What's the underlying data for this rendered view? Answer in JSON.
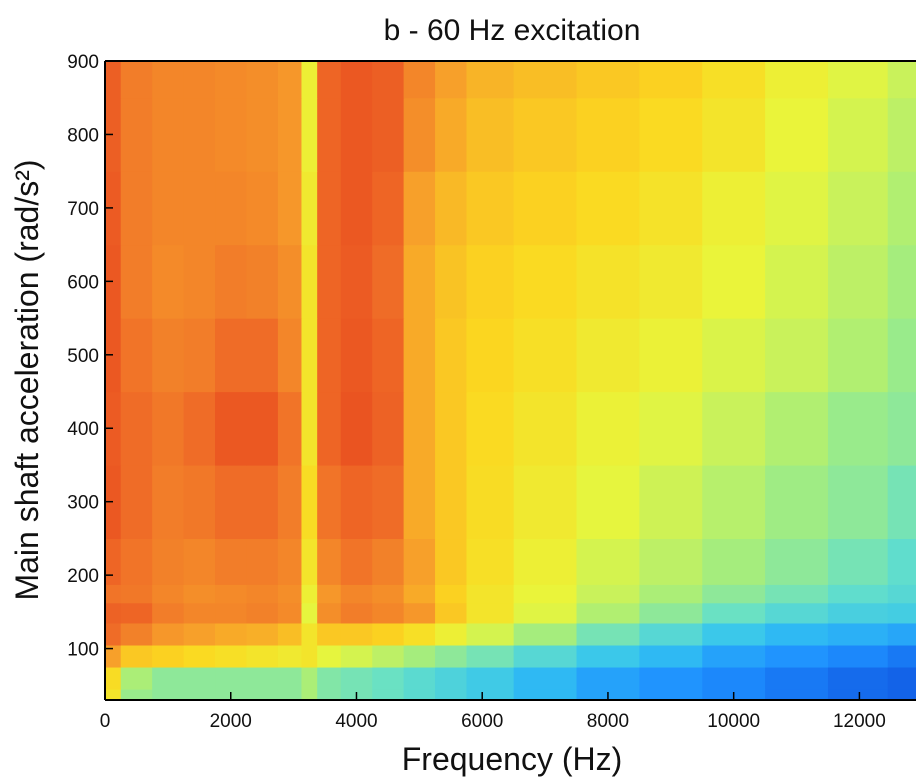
{
  "chart_data": {
    "type": "heatmap",
    "title": "b - 60 Hz excitation",
    "xlabel": "Frequency (Hz)",
    "ylabel": "Main shaft acceleration (rad/s²)",
    "xlim": [
      0,
      12900
    ],
    "ylim": [
      30,
      900
    ],
    "x_ticks": [
      {
        "value": 0,
        "label": "0"
      },
      {
        "value": 2000,
        "label": "2000"
      },
      {
        "value": 4000,
        "label": "4000"
      },
      {
        "value": 6000,
        "label": "6000"
      },
      {
        "value": 8000,
        "label": "8000"
      },
      {
        "value": 10000,
        "label": "10000"
      },
      {
        "value": 12000,
        "label": "12000"
      }
    ],
    "y_ticks": [
      {
        "value": 100,
        "label": "100"
      },
      {
        "value": 200,
        "label": "200"
      },
      {
        "value": 300,
        "label": "300"
      },
      {
        "value": 400,
        "label": "400"
      },
      {
        "value": 500,
        "label": "500"
      },
      {
        "value": 600,
        "label": "600"
      },
      {
        "value": 700,
        "label": "700"
      },
      {
        "value": 800,
        "label": "800"
      },
      {
        "value": 900,
        "label": "900"
      }
    ],
    "colormap": [
      "#0a3fd6",
      "#1e90ff",
      "#33c3f0",
      "#66e0c8",
      "#a8ee7a",
      "#e9f53b",
      "#fbd820",
      "#f7a12a",
      "#f07028",
      "#e84a1f"
    ],
    "color_scale": "relative intensity 0 to 1",
    "x": [
      0,
      500,
      1000,
      1500,
      2000,
      2500,
      3000,
      3250,
      3500,
      4000,
      4500,
      5000,
      5500,
      6000,
      7000,
      8000,
      9000,
      10000,
      11000,
      12000,
      12900
    ],
    "y": [
      30,
      60,
      90,
      120,
      150,
      175,
      200,
      300,
      400,
      500,
      600,
      700,
      800,
      900
    ],
    "values": [
      [
        0.62,
        0.42,
        0.4,
        0.4,
        0.4,
        0.4,
        0.4,
        0.45,
        0.38,
        0.36,
        0.34,
        0.31,
        0.28,
        0.25,
        0.2,
        0.15,
        0.12,
        0.1,
        0.08,
        0.06,
        0.05
      ],
      [
        0.65,
        0.45,
        0.4,
        0.4,
        0.4,
        0.4,
        0.4,
        0.45,
        0.38,
        0.36,
        0.34,
        0.31,
        0.28,
        0.25,
        0.2,
        0.15,
        0.12,
        0.1,
        0.08,
        0.06,
        0.05
      ],
      [
        0.78,
        0.7,
        0.68,
        0.66,
        0.64,
        0.62,
        0.6,
        0.62,
        0.55,
        0.52,
        0.48,
        0.44,
        0.4,
        0.36,
        0.3,
        0.24,
        0.2,
        0.15,
        0.12,
        0.1,
        0.08
      ],
      [
        0.9,
        0.85,
        0.8,
        0.78,
        0.76,
        0.75,
        0.72,
        0.62,
        0.7,
        0.7,
        0.68,
        0.64,
        0.58,
        0.52,
        0.44,
        0.36,
        0.3,
        0.24,
        0.2,
        0.18,
        0.16
      ],
      [
        0.93,
        0.92,
        0.86,
        0.84,
        0.84,
        0.85,
        0.83,
        0.55,
        0.82,
        0.86,
        0.84,
        0.8,
        0.7,
        0.62,
        0.54,
        0.46,
        0.4,
        0.34,
        0.3,
        0.27,
        0.26
      ],
      [
        0.88,
        0.87,
        0.84,
        0.82,
        0.83,
        0.84,
        0.82,
        0.58,
        0.8,
        0.84,
        0.82,
        0.76,
        0.68,
        0.62,
        0.56,
        0.5,
        0.45,
        0.4,
        0.36,
        0.32,
        0.3
      ],
      [
        0.92,
        0.88,
        0.85,
        0.84,
        0.86,
        0.86,
        0.84,
        0.62,
        0.84,
        0.88,
        0.85,
        0.78,
        0.7,
        0.64,
        0.58,
        0.52,
        0.48,
        0.44,
        0.4,
        0.36,
        0.32
      ],
      [
        0.96,
        0.9,
        0.86,
        0.87,
        0.9,
        0.9,
        0.86,
        0.65,
        0.88,
        0.92,
        0.9,
        0.76,
        0.7,
        0.65,
        0.6,
        0.55,
        0.51,
        0.47,
        0.43,
        0.4,
        0.36
      ],
      [
        0.95,
        0.9,
        0.87,
        0.9,
        0.96,
        0.96,
        0.88,
        0.62,
        0.92,
        0.97,
        0.93,
        0.76,
        0.7,
        0.66,
        0.62,
        0.57,
        0.54,
        0.5,
        0.46,
        0.42,
        0.4
      ],
      [
        0.96,
        0.88,
        0.85,
        0.86,
        0.9,
        0.9,
        0.84,
        0.62,
        0.92,
        0.96,
        0.92,
        0.76,
        0.7,
        0.67,
        0.64,
        0.6,
        0.57,
        0.53,
        0.5,
        0.46,
        0.42
      ],
      [
        0.96,
        0.86,
        0.83,
        0.84,
        0.86,
        0.85,
        0.82,
        0.62,
        0.92,
        0.95,
        0.9,
        0.76,
        0.71,
        0.68,
        0.66,
        0.63,
        0.6,
        0.56,
        0.52,
        0.48,
        0.44
      ],
      [
        0.95,
        0.86,
        0.84,
        0.84,
        0.84,
        0.83,
        0.8,
        0.6,
        0.92,
        0.96,
        0.92,
        0.78,
        0.73,
        0.7,
        0.68,
        0.66,
        0.63,
        0.58,
        0.54,
        0.5,
        0.46
      ],
      [
        0.94,
        0.86,
        0.84,
        0.84,
        0.83,
        0.82,
        0.8,
        0.58,
        0.92,
        0.96,
        0.94,
        0.82,
        0.76,
        0.72,
        0.7,
        0.68,
        0.66,
        0.62,
        0.56,
        0.52,
        0.48
      ],
      [
        0.94,
        0.86,
        0.84,
        0.84,
        0.83,
        0.82,
        0.8,
        0.58,
        0.92,
        0.96,
        0.94,
        0.84,
        0.78,
        0.74,
        0.72,
        0.7,
        0.68,
        0.64,
        0.58,
        0.54,
        0.5
      ]
    ],
    "grid": false,
    "legend": "none"
  }
}
